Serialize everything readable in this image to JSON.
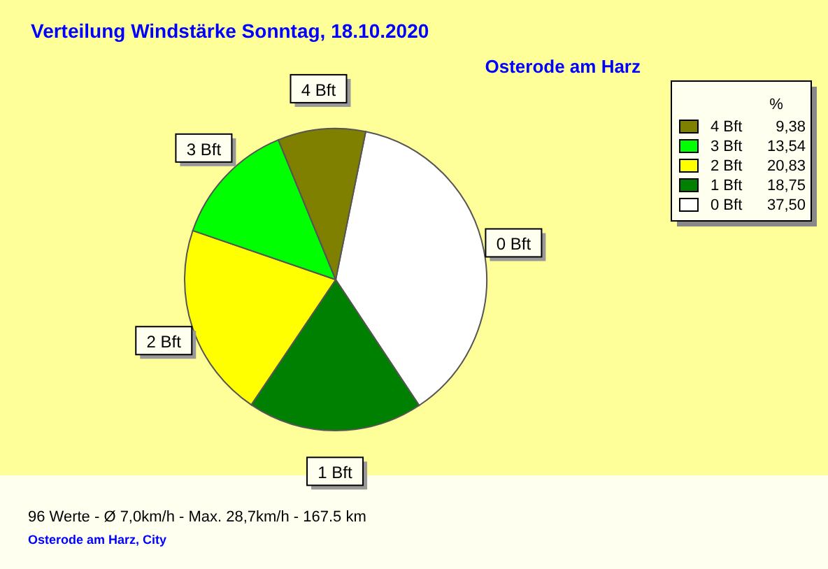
{
  "chart_data": {
    "type": "pie",
    "title": "Verteilung Windstärke  Sonntag, 18.10.2020",
    "subtitle": "Osterode am Harz",
    "legend_title": "%",
    "categories": [
      "0 Bft",
      "1 Bft",
      "2 Bft",
      "3 Bft",
      "4 Bft"
    ],
    "values": [
      37.5,
      18.75,
      20.83,
      13.54,
      9.38
    ],
    "value_labels": [
      "37,50",
      "18,75",
      "20,83",
      "13,54",
      "9,38"
    ],
    "colors": [
      "#ffffff",
      "#008000",
      "#ffff00",
      "#00ff00",
      "#808000"
    ],
    "legend": "top right",
    "annotations": [
      "96 Werte   -   Ø 7,0km/h  -  Max. 28,7km/h   -   167.5 km",
      "Osterode am Harz, City"
    ]
  }
}
